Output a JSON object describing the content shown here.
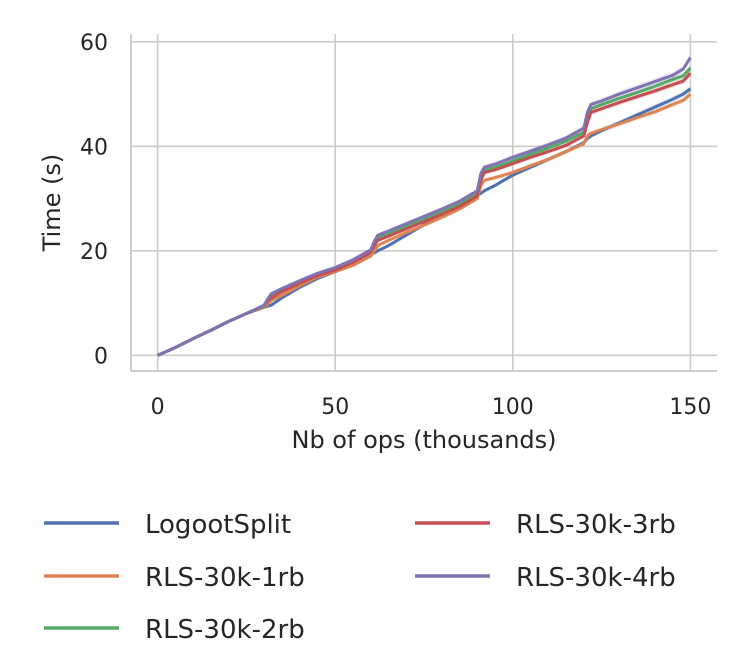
{
  "chart_data": {
    "type": "line",
    "xlabel": "Nb of ops (thousands)",
    "ylabel": "Time (s)",
    "xlim": [
      -7.5,
      157.5
    ],
    "ylim": [
      -3,
      61.5
    ],
    "x_ticks": [
      0,
      50,
      100,
      150
    ],
    "y_ticks": [
      0,
      20,
      40,
      60
    ],
    "grid": true,
    "legend_position": "below",
    "x": [
      0,
      5,
      10,
      15,
      20,
      25,
      30,
      31,
      32,
      35,
      40,
      45,
      50,
      55,
      60,
      61,
      62,
      65,
      70,
      75,
      80,
      85,
      90,
      91,
      92,
      95,
      100,
      105,
      110,
      115,
      120,
      121,
      122,
      125,
      130,
      135,
      140,
      145,
      148,
      150
    ],
    "series": [
      {
        "name": "LogootSplit",
        "color": "#4C72B0",
        "values": [
          0,
          1.5,
          3.2,
          4.8,
          6.5,
          8.0,
          9.2,
          9.4,
          9.6,
          11.0,
          13.0,
          14.7,
          16.0,
          17.5,
          19.3,
          19.6,
          20.0,
          21.0,
          23.0,
          25.0,
          26.8,
          28.5,
          30.7,
          31.0,
          31.5,
          32.5,
          34.5,
          36.0,
          37.5,
          39.0,
          40.7,
          41.5,
          42.0,
          43.0,
          44.5,
          46.0,
          47.5,
          49.0,
          50.0,
          51.0
        ]
      },
      {
        "name": "RLS-30k-1rb",
        "color": "#DD8452",
        "values": [
          0,
          1.5,
          3.2,
          4.8,
          6.5,
          8.0,
          9.3,
          9.8,
          10.5,
          11.5,
          13.3,
          15.0,
          16.0,
          17.2,
          19.0,
          20.0,
          21.0,
          22.0,
          23.5,
          24.9,
          26.4,
          28.0,
          30.0,
          32.5,
          33.5,
          34.0,
          35.0,
          36.3,
          37.5,
          39.0,
          40.5,
          42.0,
          42.5,
          43.2,
          44.3,
          45.5,
          46.6,
          48.0,
          48.8,
          50.0
        ]
      },
      {
        "name": "RLS-30k-2rb",
        "color": "#55A868",
        "values": [
          0,
          1.5,
          3.2,
          4.8,
          6.5,
          8.0,
          9.5,
          10.5,
          11.5,
          12.5,
          14.0,
          15.5,
          16.5,
          18.0,
          20.0,
          21.3,
          22.5,
          23.3,
          24.8,
          26.2,
          27.6,
          29.0,
          31.0,
          34.2,
          35.5,
          36.0,
          37.2,
          38.5,
          39.7,
          41.0,
          42.7,
          45.5,
          47.2,
          48.0,
          49.2,
          50.3,
          51.5,
          52.8,
          53.5,
          55.0
        ]
      },
      {
        "name": "RLS-30k-3rb",
        "color": "#C44E52",
        "values": [
          0,
          1.5,
          3.2,
          4.8,
          6.5,
          8.0,
          9.5,
          10.4,
          11.0,
          12.2,
          13.8,
          15.3,
          16.3,
          17.8,
          19.8,
          21.0,
          22.0,
          22.8,
          24.2,
          25.6,
          27.0,
          28.5,
          30.5,
          33.5,
          35.0,
          35.5,
          36.7,
          37.9,
          39.0,
          40.2,
          42.0,
          44.5,
          46.5,
          47.2,
          48.4,
          49.5,
          50.6,
          51.8,
          52.5,
          54.0
        ]
      },
      {
        "name": "RLS-30k-4rb",
        "color": "#8172B3",
        "values": [
          0,
          1.5,
          3.2,
          4.8,
          6.5,
          8.0,
          9.6,
          10.8,
          11.8,
          12.8,
          14.3,
          15.7,
          16.8,
          18.3,
          20.2,
          21.8,
          23.0,
          23.8,
          25.2,
          26.6,
          28.0,
          29.5,
          31.5,
          34.8,
          36.0,
          36.6,
          37.9,
          39.1,
          40.3,
          41.6,
          43.5,
          46.5,
          48.0,
          48.7,
          50.0,
          51.2,
          52.4,
          53.6,
          54.8,
          57.0
        ]
      }
    ]
  }
}
